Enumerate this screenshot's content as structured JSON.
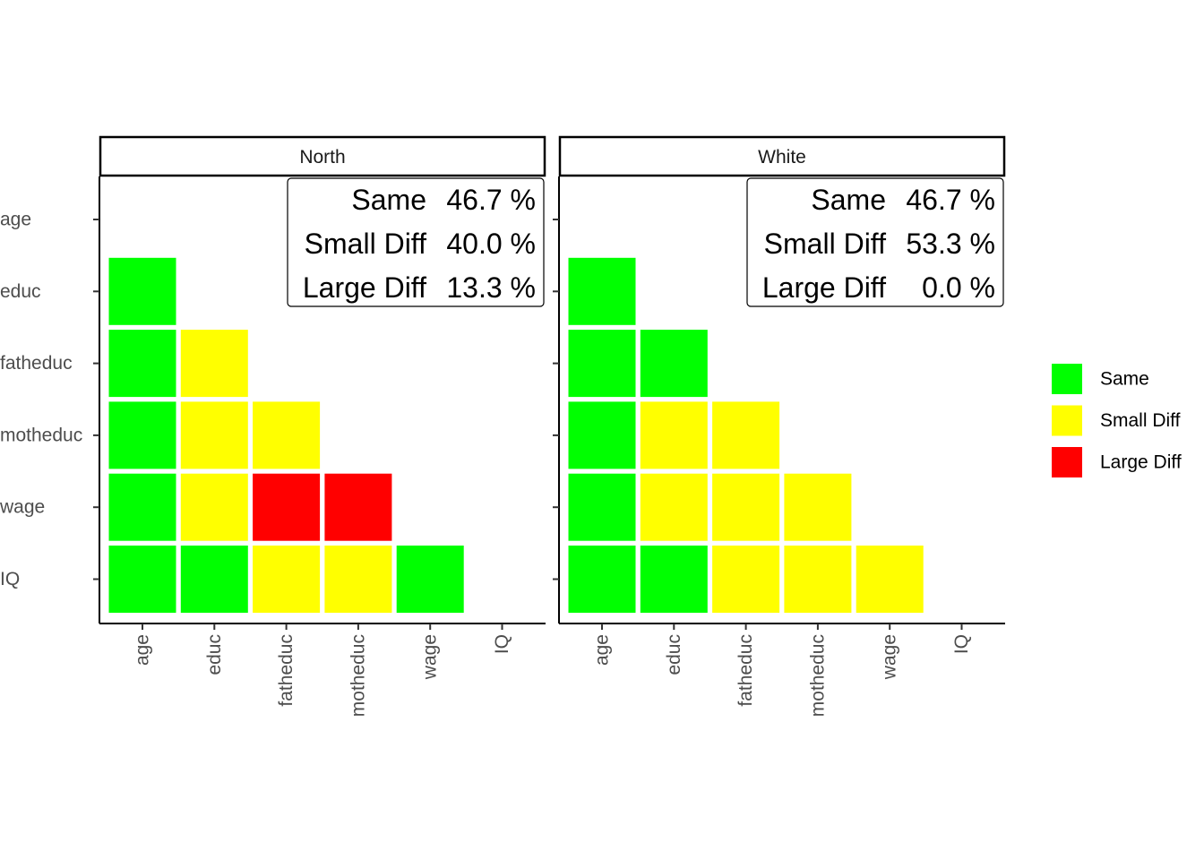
{
  "chart_data": {
    "type": "heatmap",
    "variables": [
      "age",
      "educ",
      "fatheduc",
      "motheduc",
      "wage",
      "IQ"
    ],
    "colors": {
      "Same": "#00ff00",
      "Small Diff": "#ffff00",
      "Large Diff": "#ff0000"
    },
    "legend": {
      "placement": "right",
      "entries": [
        "Same",
        "Small Diff",
        "Large Diff"
      ]
    },
    "panels": [
      {
        "title": "North",
        "stats": [
          {
            "label": "Same",
            "value": "46.7 %"
          },
          {
            "label": "Small Diff",
            "value": "40.0 %"
          },
          {
            "label": "Large Diff",
            "value": "13.3 %"
          }
        ],
        "cells": [
          {
            "x": "age",
            "y": "educ",
            "category": "Same"
          },
          {
            "x": "age",
            "y": "fatheduc",
            "category": "Same"
          },
          {
            "x": "educ",
            "y": "fatheduc",
            "category": "Small Diff"
          },
          {
            "x": "age",
            "y": "motheduc",
            "category": "Same"
          },
          {
            "x": "educ",
            "y": "motheduc",
            "category": "Small Diff"
          },
          {
            "x": "fatheduc",
            "y": "motheduc",
            "category": "Small Diff"
          },
          {
            "x": "age",
            "y": "wage",
            "category": "Same"
          },
          {
            "x": "educ",
            "y": "wage",
            "category": "Small Diff"
          },
          {
            "x": "fatheduc",
            "y": "wage",
            "category": "Large Diff"
          },
          {
            "x": "motheduc",
            "y": "wage",
            "category": "Large Diff"
          },
          {
            "x": "age",
            "y": "IQ",
            "category": "Same"
          },
          {
            "x": "educ",
            "y": "IQ",
            "category": "Same"
          },
          {
            "x": "fatheduc",
            "y": "IQ",
            "category": "Small Diff"
          },
          {
            "x": "motheduc",
            "y": "IQ",
            "category": "Small Diff"
          },
          {
            "x": "wage",
            "y": "IQ",
            "category": "Same"
          }
        ]
      },
      {
        "title": "White",
        "stats": [
          {
            "label": "Same",
            "value": "46.7 %"
          },
          {
            "label": "Small Diff",
            "value": "53.3 %"
          },
          {
            "label": "Large Diff",
            "value": "0.0 %"
          }
        ],
        "cells": [
          {
            "x": "age",
            "y": "educ",
            "category": "Same"
          },
          {
            "x": "age",
            "y": "fatheduc",
            "category": "Same"
          },
          {
            "x": "educ",
            "y": "fatheduc",
            "category": "Same"
          },
          {
            "x": "age",
            "y": "motheduc",
            "category": "Same"
          },
          {
            "x": "educ",
            "y": "motheduc",
            "category": "Small Diff"
          },
          {
            "x": "fatheduc",
            "y": "motheduc",
            "category": "Small Diff"
          },
          {
            "x": "age",
            "y": "wage",
            "category": "Same"
          },
          {
            "x": "educ",
            "y": "wage",
            "category": "Small Diff"
          },
          {
            "x": "fatheduc",
            "y": "wage",
            "category": "Small Diff"
          },
          {
            "x": "motheduc",
            "y": "wage",
            "category": "Small Diff"
          },
          {
            "x": "age",
            "y": "IQ",
            "category": "Same"
          },
          {
            "x": "educ",
            "y": "IQ",
            "category": "Same"
          },
          {
            "x": "fatheduc",
            "y": "IQ",
            "category": "Small Diff"
          },
          {
            "x": "motheduc",
            "y": "IQ",
            "category": "Small Diff"
          },
          {
            "x": "wage",
            "y": "IQ",
            "category": "Small Diff"
          }
        ]
      }
    ]
  }
}
